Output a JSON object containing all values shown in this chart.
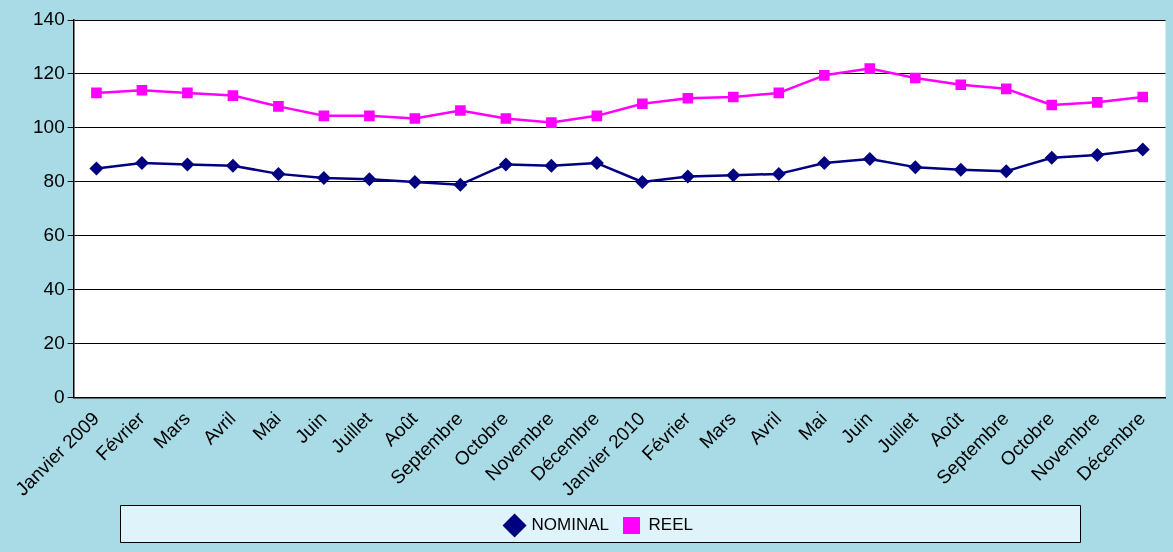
{
  "chart_data": {
    "type": "line",
    "categories": [
      "Janvier 2009",
      "Février",
      "Mars",
      "Avril",
      "Mai",
      "Juin",
      "Juillet",
      "Août",
      "Septembre",
      "Octobre",
      "Novembre",
      "Décembre",
      "Janvier 2010",
      "Février",
      "Mars",
      "Avril",
      "Mai",
      "Juin",
      "Juillet",
      "Août",
      "Septembre",
      "Octobre",
      "Novembre",
      "Décembre"
    ],
    "series": [
      {
        "name": "NOMINAL",
        "color": "#000080",
        "marker": "diamond",
        "values": [
          85,
          87,
          86.5,
          86,
          83,
          81.5,
          81,
          80,
          79,
          86.5,
          86,
          87,
          80,
          82,
          82.5,
          83,
          87,
          88.5,
          85.5,
          84.5,
          84,
          89,
          90,
          92
        ]
      },
      {
        "name": "REEL",
        "color": "#ff00ff",
        "marker": "square",
        "values": [
          113,
          114,
          113,
          112,
          108,
          104.5,
          104.5,
          103.5,
          106.5,
          103.5,
          102,
          104.5,
          109,
          111,
          111.5,
          113,
          119.5,
          122,
          118.5,
          116,
          114.5,
          108.5,
          109.5,
          111.5
        ]
      }
    ],
    "ylim": [
      0,
      140
    ],
    "yticks": [
      0,
      20,
      40,
      60,
      80,
      100,
      120,
      140
    ],
    "grid": "y",
    "legend": "bottom"
  }
}
